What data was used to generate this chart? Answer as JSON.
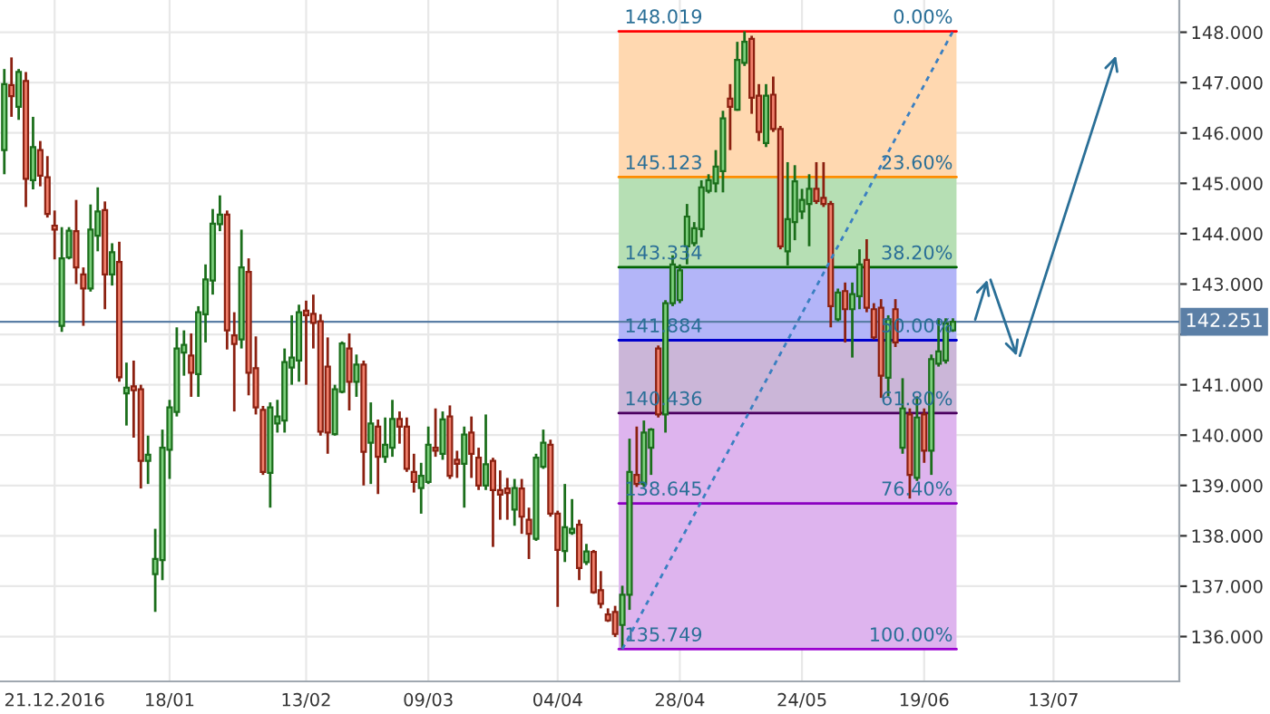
{
  "chart_data": {
    "type": "candlestick",
    "categories": [
      null,
      null,
      null,
      null,
      null,
      null,
      null,
      "21.12.2016",
      null,
      null,
      null,
      null,
      null,
      null,
      null,
      null,
      null,
      null,
      null,
      null,
      null,
      null,
      null,
      "18/01",
      null,
      null,
      null,
      null,
      null,
      null,
      null,
      null,
      null,
      null,
      null,
      null,
      null,
      null,
      null,
      null,
      null,
      null,
      "13/02",
      null,
      null,
      null,
      null,
      null,
      null,
      null,
      null,
      null,
      null,
      null,
      null,
      null,
      null,
      null,
      null,
      "09/03",
      null,
      null,
      null,
      null,
      null,
      null,
      null,
      null,
      null,
      null,
      null,
      null,
      null,
      null,
      null,
      null,
      null,
      "04/04",
      null,
      null,
      null,
      null,
      null,
      null,
      null,
      null,
      null,
      null,
      null,
      null,
      null,
      null,
      null,
      null,
      "28/04",
      null,
      null,
      null,
      null,
      null,
      null,
      null,
      null,
      null,
      null,
      null,
      null,
      null,
      null,
      null,
      null,
      "24/05",
      null,
      null,
      null,
      null,
      null,
      null,
      null,
      null,
      null,
      null,
      null,
      null,
      null,
      null,
      null,
      null,
      "19/06",
      null,
      null,
      null,
      null,
      null,
      null,
      null,
      null,
      null,
      null,
      null,
      null,
      null,
      null,
      null,
      null,
      null,
      "13/07",
      null,
      null,
      null,
      null,
      null,
      null,
      null,
      null,
      null,
      null,
      null,
      null,
      null,
      null,
      null,
      null,
      null
    ],
    "ohlc": [
      [
        145.66,
        147.27,
        145.18,
        146.97
      ],
      [
        146.95,
        147.5,
        146.32,
        146.73
      ],
      [
        146.52,
        147.27,
        146.26,
        147.21
      ],
      [
        147.03,
        147.21,
        144.53,
        145.09
      ],
      [
        145.06,
        146.32,
        144.88,
        145.72
      ],
      [
        145.66,
        145.84,
        144.94,
        145.15
      ],
      [
        145.12,
        145.54,
        144.32,
        144.39
      ],
      [
        144.16,
        144.46,
        143.49,
        144.08
      ],
      [
        142.17,
        144.13,
        142.05,
        143.51
      ],
      [
        143.53,
        144.13,
        143.49,
        144.06
      ],
      [
        144.05,
        144.67,
        143.0,
        143.33
      ],
      [
        143.19,
        143.33,
        142.17,
        142.91
      ],
      [
        142.91,
        144.58,
        142.85,
        144.08
      ],
      [
        143.96,
        144.92,
        143.65,
        144.44
      ],
      [
        144.47,
        144.64,
        142.5,
        143.19
      ],
      [
        143.19,
        143.81,
        142.97,
        143.63
      ],
      [
        143.44,
        143.84,
        141.06,
        141.15
      ],
      [
        140.83,
        141.44,
        140.19,
        140.94
      ],
      [
        140.97,
        141.48,
        139.95,
        140.89
      ],
      [
        140.91,
        141.0,
        138.94,
        139.49
      ],
      [
        139.49,
        139.99,
        139.03,
        139.61
      ],
      [
        137.24,
        138.14,
        136.49,
        137.54
      ],
      [
        137.52,
        140.11,
        137.12,
        139.75
      ],
      [
        139.71,
        140.7,
        139.13,
        140.55
      ],
      [
        140.46,
        142.14,
        140.37,
        141.72
      ],
      [
        141.64,
        142.08,
        141.18,
        141.79
      ],
      [
        141.58,
        142.02,
        140.76,
        141.24
      ],
      [
        141.21,
        142.56,
        140.76,
        142.44
      ],
      [
        142.4,
        143.39,
        141.84,
        143.09
      ],
      [
        143.07,
        144.49,
        142.79,
        144.2
      ],
      [
        144.19,
        144.76,
        144.05,
        144.38
      ],
      [
        144.38,
        144.46,
        141.7,
        142.08
      ],
      [
        141.98,
        142.44,
        140.47,
        141.81
      ],
      [
        141.9,
        144.08,
        141.72,
        143.33
      ],
      [
        143.24,
        143.51,
        140.79,
        141.24
      ],
      [
        141.33,
        141.96,
        140.41,
        140.55
      ],
      [
        140.5,
        140.58,
        139.21,
        139.27
      ],
      [
        139.25,
        140.65,
        138.56,
        140.55
      ],
      [
        140.23,
        140.7,
        140.05,
        140.37
      ],
      [
        140.29,
        141.72,
        140.05,
        141.45
      ],
      [
        141.34,
        142.38,
        141.0,
        141.54
      ],
      [
        141.48,
        142.59,
        141.06,
        142.44
      ],
      [
        142.47,
        142.67,
        141.0,
        142.38
      ],
      [
        142.41,
        142.79,
        141.72,
        142.23
      ],
      [
        142.26,
        142.4,
        139.99,
        140.07
      ],
      [
        141.36,
        141.94,
        139.63,
        140.05
      ],
      [
        140.02,
        141.0,
        139.99,
        140.91
      ],
      [
        140.86,
        141.86,
        140.83,
        141.82
      ],
      [
        141.72,
        142.02,
        140.49,
        141.06
      ],
      [
        141.06,
        141.6,
        140.76,
        141.4
      ],
      [
        141.4,
        141.48,
        139.0,
        139.67
      ],
      [
        139.85,
        140.65,
        139.03,
        140.23
      ],
      [
        140.17,
        140.31,
        138.83,
        139.57
      ],
      [
        139.57,
        140.35,
        139.45,
        139.81
      ],
      [
        139.75,
        140.7,
        139.57,
        140.32
      ],
      [
        140.32,
        140.47,
        139.83,
        140.17
      ],
      [
        140.17,
        140.35,
        139.27,
        139.33
      ],
      [
        139.27,
        139.63,
        138.86,
        139.07
      ],
      [
        138.95,
        139.45,
        138.44,
        139.19
      ],
      [
        139.07,
        140.17,
        139.03,
        139.81
      ],
      [
        139.75,
        140.53,
        139.57,
        139.69
      ],
      [
        139.63,
        140.47,
        139.51,
        140.31
      ],
      [
        140.37,
        140.59,
        139.13,
        139.19
      ],
      [
        139.51,
        139.69,
        139.15,
        139.43
      ],
      [
        139.43,
        140.17,
        138.56,
        140.01
      ],
      [
        140.05,
        140.37,
        139.15,
        139.63
      ],
      [
        139.55,
        139.75,
        138.91,
        139.0
      ],
      [
        139.0,
        140.41,
        138.91,
        139.42
      ],
      [
        139.49,
        139.55,
        137.78,
        138.91
      ],
      [
        138.91,
        139.3,
        138.32,
        138.82
      ],
      [
        138.94,
        139.15,
        138.32,
        138.85
      ],
      [
        138.52,
        139.13,
        138.2,
        138.95
      ],
      [
        138.94,
        139.13,
        138.04,
        138.38
      ],
      [
        138.32,
        138.56,
        137.54,
        138.04
      ],
      [
        137.94,
        139.63,
        137.9,
        139.55
      ],
      [
        139.37,
        140.11,
        139.33,
        139.85
      ],
      [
        139.81,
        139.91,
        138.38,
        138.44
      ],
      [
        138.44,
        138.5,
        136.59,
        137.72
      ],
      [
        137.7,
        139.03,
        137.48,
        138.17
      ],
      [
        138.06,
        138.73,
        138.02,
        138.14
      ],
      [
        138.22,
        138.32,
        137.12,
        137.36
      ],
      [
        137.48,
        137.84,
        137.42,
        137.69
      ],
      [
        137.68,
        137.72,
        136.85,
        136.88
      ],
      [
        136.92,
        137.3,
        136.56,
        136.65
      ],
      [
        136.44,
        136.56,
        136.29,
        136.32
      ],
      [
        136.49,
        136.61,
        135.99,
        136.05
      ],
      [
        136.23,
        137.01,
        135.749,
        136.83
      ],
      [
        136.83,
        139.93,
        136.53,
        139.27
      ],
      [
        139.21,
        140.17,
        138.97,
        139.03
      ],
      [
        139.03,
        140.29,
        138.97,
        140.05
      ],
      [
        139.75,
        140.14,
        139.21,
        140.11
      ],
      [
        141.72,
        141.78,
        140.35,
        140.41
      ],
      [
        140.41,
        142.68,
        140.05,
        142.62
      ],
      [
        142.62,
        143.57,
        142.56,
        143.39
      ],
      [
        142.68,
        143.39,
        142.62,
        143.27
      ],
      [
        143.75,
        144.59,
        143.39,
        144.34
      ],
      [
        143.81,
        144.23,
        143.75,
        144.11
      ],
      [
        144.09,
        145.06,
        143.93,
        144.92
      ],
      [
        144.85,
        145.18,
        144.8,
        145.06
      ],
      [
        145.0,
        145.66,
        144.82,
        145.33
      ],
      [
        145.24,
        146.44,
        144.82,
        146.29
      ],
      [
        146.68,
        146.97,
        145.66,
        146.52
      ],
      [
        146.46,
        147.81,
        146.44,
        147.45
      ],
      [
        147.39,
        148.019,
        147.33,
        147.81
      ],
      [
        147.87,
        147.93,
        146.38,
        146.7
      ],
      [
        146.74,
        146.97,
        145.84,
        146.02
      ],
      [
        145.8,
        146.97,
        145.72,
        146.74
      ],
      [
        146.76,
        147.12,
        146.02,
        146.08
      ],
      [
        146.08,
        146.14,
        143.69,
        143.75
      ],
      [
        143.65,
        145.42,
        143.37,
        144.29
      ],
      [
        144.23,
        145.36,
        143.87,
        145.04
      ],
      [
        144.44,
        144.89,
        144.29,
        144.67
      ],
      [
        144.59,
        145.18,
        143.75,
        144.89
      ],
      [
        144.89,
        145.42,
        144.59,
        144.65
      ],
      [
        144.71,
        145.42,
        144.53,
        144.59
      ],
      [
        144.59,
        144.65,
        142.14,
        142.56
      ],
      [
        142.3,
        142.91,
        142.26,
        142.83
      ],
      [
        142.86,
        143.03,
        141.84,
        142.5
      ],
      [
        142.5,
        143.03,
        141.54,
        142.8
      ],
      [
        142.76,
        143.69,
        142.5,
        143.39
      ],
      [
        143.48,
        143.89,
        142.44,
        142.53
      ],
      [
        142.5,
        142.62,
        141.9,
        141.94
      ],
      [
        142.53,
        142.7,
        140.74,
        141.18
      ],
      [
        141.14,
        142.38,
        140.77,
        142.3
      ],
      [
        142.5,
        142.7,
        141.75,
        141.84
      ],
      [
        139.75,
        141.13,
        139.63,
        140.53
      ],
      [
        140.41,
        140.53,
        138.74,
        139.21
      ],
      [
        139.15,
        140.77,
        139.09,
        140.35
      ],
      [
        140.41,
        140.53,
        139.45,
        139.69
      ],
      [
        139.69,
        141.6,
        139.21,
        141.51
      ],
      [
        141.42,
        142.32,
        141.36,
        141.66
      ],
      [
        141.48,
        142.32,
        141.42,
        142.22
      ],
      [
        142.08,
        142.32,
        142.05,
        142.251
      ],
      null,
      null,
      null,
      null,
      null,
      null,
      null,
      null,
      null,
      null,
      null,
      null,
      null,
      null,
      null,
      null,
      null,
      null,
      null,
      null,
      null,
      null,
      null,
      null,
      null,
      null,
      null,
      null,
      null,
      null,
      null
    ],
    "series": [
      {
        "type": "line",
        "line_style": "dashed",
        "color": "#3a7fc1",
        "values": [
          null,
          null,
          null,
          null,
          null,
          null,
          null,
          null,
          null,
          null,
          null,
          null,
          null,
          null,
          null,
          null,
          null,
          null,
          null,
          null,
          null,
          null,
          null,
          null,
          null,
          null,
          null,
          null,
          null,
          null,
          null,
          null,
          null,
          null,
          null,
          null,
          null,
          null,
          null,
          null,
          null,
          null,
          null,
          null,
          null,
          null,
          null,
          null,
          null,
          null,
          null,
          null,
          null,
          null,
          null,
          null,
          null,
          null,
          null,
          null,
          null,
          null,
          null,
          null,
          null,
          null,
          null,
          null,
          null,
          null,
          null,
          null,
          null,
          null,
          null,
          null,
          null,
          null,
          null,
          null,
          null,
          null,
          null,
          null,
          null,
          null,
          135.75,
          null,
          null,
          null,
          null,
          null,
          null,
          null,
          null,
          null,
          null,
          null,
          null,
          null,
          null,
          null,
          null,
          null,
          null,
          null,
          null,
          null,
          null,
          null,
          null,
          null,
          null,
          null,
          null,
          null,
          null,
          null,
          null,
          null,
          null,
          null,
          null,
          null,
          null,
          null,
          null,
          null,
          null,
          null,
          null,
          null,
          148.02,
          null,
          null,
          null,
          null,
          null,
          null,
          null,
          null,
          null,
          null,
          null,
          null,
          null,
          null,
          null,
          null,
          null,
          null,
          null,
          null,
          null,
          null,
          null,
          null,
          null,
          null,
          null,
          null,
          null,
          null,
          null
        ]
      }
    ],
    "ylim": [
      135.11,
      148.64
    ],
    "yticks": [
      {
        "value": 136,
        "label": "136.000"
      },
      {
        "value": 137,
        "label": "137.000"
      },
      {
        "value": 138,
        "label": "138.000"
      },
      {
        "value": 139,
        "label": "139.000"
      },
      {
        "value": 140,
        "label": "140.000"
      },
      {
        "value": 141,
        "label": "141.000"
      },
      {
        "value": 142,
        "label": null
      },
      {
        "value": 143,
        "label": "143.000"
      },
      {
        "value": 144,
        "label": "144.000"
      },
      {
        "value": 145,
        "label": "145.000"
      },
      {
        "value": 146,
        "label": "146.000"
      },
      {
        "value": 147,
        "label": "147.000"
      },
      {
        "value": 148,
        "label": "148.000"
      }
    ],
    "grid": true,
    "bands": [
      {
        "axis": "y",
        "from": 145.123,
        "to": 148.019,
        "color": "#ffd8b0"
      },
      {
        "axis": "y",
        "from": 143.334,
        "to": 145.123,
        "color": "#b6dfb4"
      },
      {
        "axis": "y",
        "from": 141.884,
        "to": 143.334,
        "color": "#b3b5f8"
      },
      {
        "axis": "y",
        "from": 140.436,
        "to": 141.884,
        "color": "#cbb6d8"
      },
      {
        "axis": "y",
        "from": 138.645,
        "to": 140.436,
        "color": "#deb4ee"
      },
      {
        "axis": "y",
        "from": 135.749,
        "to": 138.645,
        "color": "#deb4ee"
      }
    ],
    "annotations": [
      {
        "text": "0.00%",
        "y": 148.019
      },
      {
        "text": "23.60%",
        "y": 145.123
      },
      {
        "text": "38.20%",
        "y": 143.334
      },
      {
        "text": "50.00%",
        "y": 141.884
      },
      {
        "text": "61.80%",
        "y": 140.436
      },
      {
        "text": "76.40%",
        "y": 138.645
      },
      {
        "text": "100.00%",
        "y": 135.749
      }
    ],
    "ref_lines": [
      {
        "axis": "y",
        "value": 148.019,
        "label": "148.019",
        "color": "#ff0000"
      },
      {
        "axis": "y",
        "value": 145.123,
        "label": "145.123",
        "color": "#ff8c00"
      },
      {
        "axis": "y",
        "value": 143.334,
        "label": "143.334",
        "color": "#006400"
      },
      {
        "axis": "y",
        "value": 141.884,
        "label": "141.884",
        "color": "#0000cc"
      },
      {
        "axis": "y",
        "value": 140.436,
        "label": "140.436",
        "color": "#4b0060"
      },
      {
        "axis": "y",
        "value": 138.645,
        "label": "138.645",
        "color": "#8a00c0"
      },
      {
        "axis": "y",
        "value": 135.749,
        "label": "135.749",
        "color": "#9b00d0"
      },
      {
        "axis": "y",
        "value": 142.251,
        "label": "142.251",
        "color": "#5b7fa6"
      }
    ]
  }
}
